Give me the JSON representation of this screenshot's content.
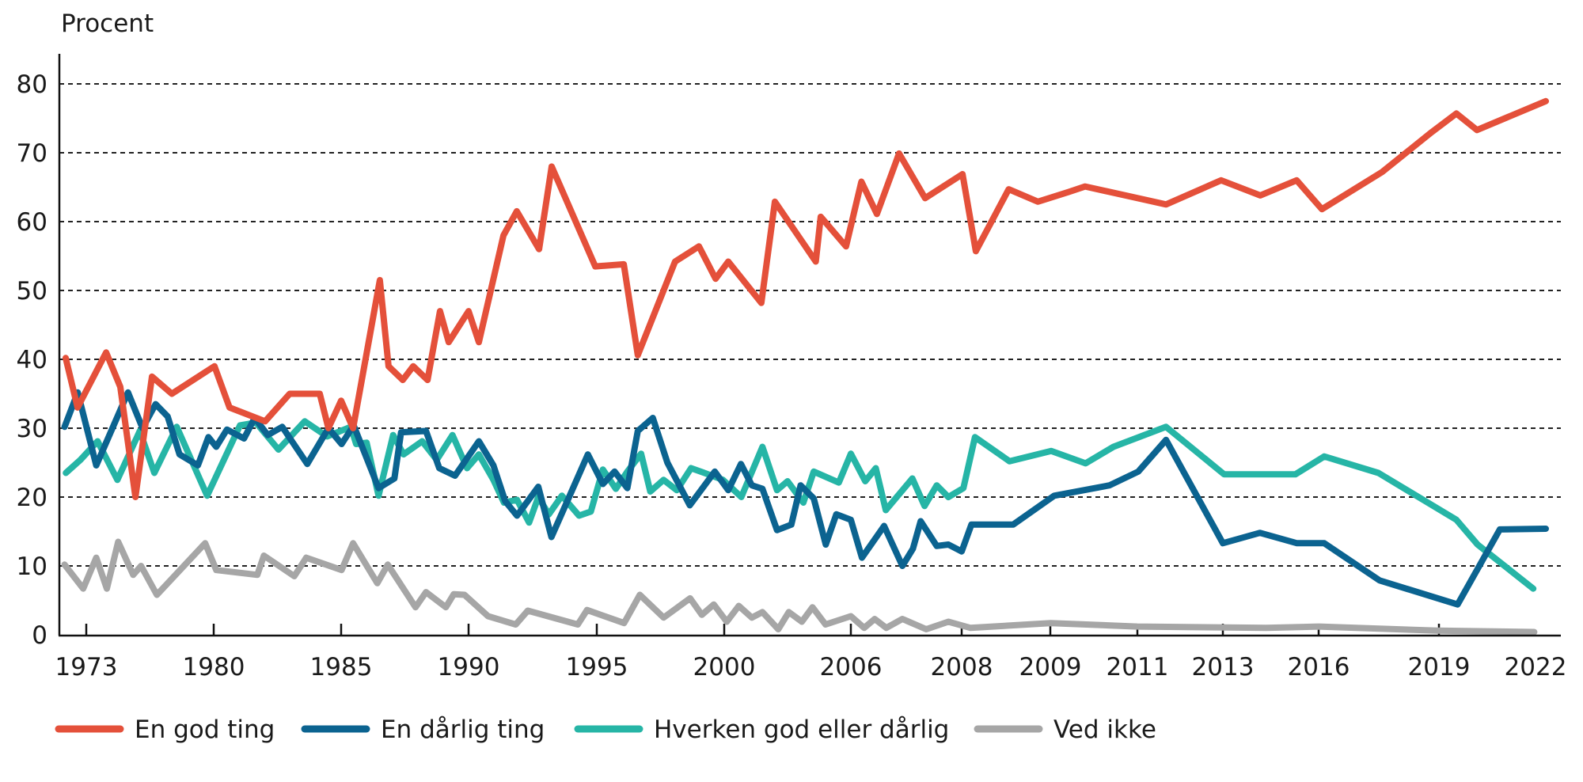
{
  "chart_data": {
    "type": "line",
    "title": "",
    "ylabel": "Procent",
    "xlabel": "",
    "ylim": [
      0,
      80
    ],
    "yticks": [
      "0",
      "10",
      "20",
      "30",
      "40",
      "50",
      "60",
      "70",
      "80"
    ],
    "xticks": [
      "1973",
      "1980",
      "1985",
      "1990",
      "1995",
      "2000",
      "2006",
      "2008",
      "2009",
      "2011",
      "2013",
      "2016",
      "2019",
      "2022"
    ],
    "x_axis_note_scale": "non-linear (survey rounds)",
    "grid": "horizontal dashed",
    "legend_position": "bottom",
    "series": [
      {
        "name": "En god ting",
        "color": "#e4503a",
        "points": [
          [
            1971.87,
            40.2
          ],
          [
            1972.52,
            33
          ],
          [
            1974.09,
            41
          ],
          [
            1974.87,
            36
          ],
          [
            1975.7,
            20
          ],
          [
            1976.61,
            37.5
          ],
          [
            1977.7,
            35
          ],
          [
            1980.03,
            39
          ],
          [
            1980.62,
            33
          ],
          [
            1982.02,
            31
          ],
          [
            1982.98,
            35
          ],
          [
            1984.16,
            35
          ],
          [
            1984.5,
            30
          ],
          [
            1985.0,
            34
          ],
          [
            1985.47,
            30
          ],
          [
            1986.52,
            51.5
          ],
          [
            1986.86,
            39
          ],
          [
            1987.42,
            37
          ],
          [
            1987.83,
            39
          ],
          [
            1988.39,
            37
          ],
          [
            1988.88,
            47
          ],
          [
            1989.22,
            42.5
          ],
          [
            1990.0,
            47
          ],
          [
            1990.4,
            42.5
          ],
          [
            1991.36,
            58
          ],
          [
            1991.88,
            61.5
          ],
          [
            1992.75,
            56
          ],
          [
            1993.24,
            68
          ],
          [
            1994.94,
            53.5
          ],
          [
            1996.06,
            53.8
          ],
          [
            1996.61,
            40.6
          ],
          [
            1998.07,
            54.2
          ],
          [
            1999.01,
            56.4
          ],
          [
            1999.66,
            51.7
          ],
          [
            2000.19,
            54.2
          ],
          [
            2001.76,
            48.2
          ],
          [
            2002.4,
            62.9
          ],
          [
            2004.34,
            54.2
          ],
          [
            2004.57,
            60.7
          ],
          [
            2005.77,
            56.4
          ],
          [
            2006.19,
            65.8
          ],
          [
            2006.47,
            61.1
          ],
          [
            2006.87,
            69.9
          ],
          [
            2007.34,
            63.4
          ],
          [
            2008.01,
            66.9
          ],
          [
            2008.16,
            55.7
          ],
          [
            2008.53,
            64.7
          ],
          [
            2008.86,
            62.9
          ],
          [
            2009.42,
            64.3
          ],
          [
            2009.8,
            65.1
          ],
          [
            2011.67,
            62.5
          ],
          [
            2012.96,
            66
          ],
          [
            2014.17,
            63.8
          ],
          [
            2015.31,
            66
          ],
          [
            2016.08,
            61.8
          ],
          [
            2017.58,
            67.2
          ],
          [
            2018.82,
            73
          ],
          [
            2019.54,
            75.7
          ],
          [
            2020.18,
            73.3
          ],
          [
            2022.32,
            77.5
          ]
        ]
      },
      {
        "name": "En dårlig ting",
        "color": "#0b6390",
        "points": [
          [
            1971.81,
            30.2
          ],
          [
            1972.53,
            35.2
          ],
          [
            1973.55,
            24.6
          ],
          [
            1975.29,
            35.2
          ],
          [
            1976.09,
            30
          ],
          [
            1976.81,
            33.5
          ],
          [
            1977.47,
            31.7
          ],
          [
            1978.12,
            26.2
          ],
          [
            1979.13,
            24.6
          ],
          [
            1979.71,
            28.7
          ],
          [
            1980.1,
            27.3
          ],
          [
            1980.52,
            29.8
          ],
          [
            1981.19,
            28.5
          ],
          [
            1981.61,
            31.5
          ],
          [
            1982.12,
            29
          ],
          [
            1982.69,
            30.2
          ],
          [
            1983.67,
            24.8
          ],
          [
            1984.5,
            30
          ],
          [
            1985.02,
            27.7
          ],
          [
            1985.49,
            30.4
          ],
          [
            1986.47,
            21.3
          ],
          [
            1987.09,
            22.7
          ],
          [
            1987.35,
            29.4
          ],
          [
            1988.33,
            29.6
          ],
          [
            1988.85,
            24.2
          ],
          [
            1989.47,
            23.1
          ],
          [
            1990.4,
            28.1
          ],
          [
            1990.97,
            24.6
          ],
          [
            1991.43,
            19.4
          ],
          [
            1991.89,
            17.3
          ],
          [
            1992.72,
            21.5
          ],
          [
            1993.23,
            14.2
          ],
          [
            1993.85,
            19.4
          ],
          [
            1994.65,
            26.2
          ],
          [
            1995.24,
            21.9
          ],
          [
            1995.7,
            23.7
          ],
          [
            1996.2,
            21.3
          ],
          [
            1996.61,
            29.6
          ],
          [
            1997.2,
            31.5
          ],
          [
            1997.77,
            25
          ],
          [
            1998.65,
            18.8
          ],
          [
            1999.63,
            23.7
          ],
          [
            2000.19,
            21
          ],
          [
            2000.79,
            24.8
          ],
          [
            2001.31,
            21.7
          ],
          [
            2001.81,
            21.2
          ],
          [
            2002.5,
            15.2
          ],
          [
            2003.18,
            16
          ],
          [
            2003.62,
            21.7
          ],
          [
            2004.24,
            19.8
          ],
          [
            2004.81,
            13.1
          ],
          [
            2005.31,
            17.5
          ],
          [
            2006.0,
            16.7
          ],
          [
            2006.2,
            11.2
          ],
          [
            2006.6,
            15.8
          ],
          [
            2006.93,
            10
          ],
          [
            2007.12,
            12.5
          ],
          [
            2007.26,
            16.5
          ],
          [
            2007.55,
            12.9
          ],
          [
            2007.76,
            13.1
          ],
          [
            2008.0,
            12.1
          ],
          [
            2008.11,
            16
          ],
          [
            2008.58,
            16
          ],
          [
            2009.09,
            20.2
          ],
          [
            2010.36,
            21.7
          ],
          [
            2011.02,
            23.7
          ],
          [
            2011.67,
            28.3
          ],
          [
            2013.0,
            13.3
          ],
          [
            2014.16,
            14.8
          ],
          [
            2015.32,
            13.3
          ],
          [
            2016.14,
            13.3
          ],
          [
            2017.52,
            7.9
          ],
          [
            2019.58,
            4.4
          ],
          [
            2020.89,
            15.3
          ],
          [
            2022.32,
            15.4
          ]
        ]
      },
      {
        "name": "Hverken god eller dårlig",
        "color": "#26b5a6",
        "points": [
          [
            1971.88,
            23.5
          ],
          [
            1972.68,
            25.4
          ],
          [
            1973.62,
            28.1
          ],
          [
            1974.71,
            22.5
          ],
          [
            1975.94,
            29.6
          ],
          [
            1976.74,
            23.5
          ],
          [
            1977.97,
            30.2
          ],
          [
            1979.64,
            20.2
          ],
          [
            1981.03,
            30.4
          ],
          [
            1981.66,
            30.8
          ],
          [
            1982.54,
            26.9
          ],
          [
            1983.57,
            31
          ],
          [
            1984.45,
            28.8
          ],
          [
            1985.38,
            30.2
          ],
          [
            1985.59,
            27.7
          ],
          [
            1986.0,
            27.9
          ],
          [
            1986.47,
            20.2
          ],
          [
            1987.04,
            29
          ],
          [
            1987.45,
            26.2
          ],
          [
            1988.18,
            28.1
          ],
          [
            1988.75,
            25.4
          ],
          [
            1989.37,
            29
          ],
          [
            1989.94,
            24.2
          ],
          [
            1990.4,
            26.2
          ],
          [
            1990.97,
            22.5
          ],
          [
            1991.38,
            19.2
          ],
          [
            1991.89,
            19.6
          ],
          [
            1992.36,
            16.3
          ],
          [
            1992.72,
            20
          ],
          [
            1993.13,
            17.5
          ],
          [
            1993.64,
            20.2
          ],
          [
            1994.31,
            17.3
          ],
          [
            1994.77,
            17.9
          ],
          [
            1995.24,
            24
          ],
          [
            1995.75,
            21.2
          ],
          [
            1996.22,
            23.8
          ],
          [
            1996.74,
            26.3
          ],
          [
            1997.1,
            20.8
          ],
          [
            1997.62,
            22.5
          ],
          [
            1998.14,
            21
          ],
          [
            1998.7,
            24.2
          ],
          [
            1999.22,
            23.5
          ],
          [
            1999.95,
            22.5
          ],
          [
            2000.81,
            20
          ],
          [
            2001.81,
            27.3
          ],
          [
            2002.5,
            21
          ],
          [
            2003.0,
            22.3
          ],
          [
            2003.75,
            19.2
          ],
          [
            2004.24,
            23.7
          ],
          [
            2005.43,
            22.1
          ],
          [
            2006.0,
            26.3
          ],
          [
            2006.26,
            22.3
          ],
          [
            2006.45,
            24.2
          ],
          [
            2006.63,
            18.1
          ],
          [
            2007.11,
            22.7
          ],
          [
            2007.33,
            18.7
          ],
          [
            2007.55,
            21.7
          ],
          [
            2007.76,
            20
          ],
          [
            2008.02,
            21.3
          ],
          [
            2008.15,
            28.7
          ],
          [
            2008.54,
            25.2
          ],
          [
            2009.02,
            26.7
          ],
          [
            2009.81,
            24.9
          ],
          [
            2010.45,
            27.3
          ],
          [
            2011.67,
            30.2
          ],
          [
            2013.04,
            23.3
          ],
          [
            2015.27,
            23.3
          ],
          [
            2016.14,
            25.9
          ],
          [
            2017.49,
            23.5
          ],
          [
            2019.54,
            16.7
          ],
          [
            2020.2,
            13.1
          ],
          [
            2021.93,
            6.7
          ]
        ]
      },
      {
        "name": "Ved ikke",
        "color": "#a6a6a6",
        "points": [
          [
            1971.81,
            10.2
          ],
          [
            1972.83,
            6.7
          ],
          [
            1973.55,
            11.2
          ],
          [
            1974.13,
            6.7
          ],
          [
            1974.75,
            13.5
          ],
          [
            1975.58,
            8.7
          ],
          [
            1976.01,
            10
          ],
          [
            1976.88,
            5.8
          ],
          [
            1979.53,
            13.3
          ],
          [
            1980.1,
            9.4
          ],
          [
            1981.71,
            8.7
          ],
          [
            1981.97,
            11.5
          ],
          [
            1983.16,
            8.5
          ],
          [
            1983.63,
            11.2
          ],
          [
            1985.02,
            9.4
          ],
          [
            1985.47,
            13.3
          ],
          [
            1986.42,
            7.5
          ],
          [
            1986.83,
            10.2
          ],
          [
            1987.92,
            4
          ],
          [
            1988.33,
            6.2
          ],
          [
            1989.11,
            4
          ],
          [
            1989.42,
            5.9
          ],
          [
            1989.84,
            5.8
          ],
          [
            1990.76,
            2.7
          ],
          [
            1991.84,
            1.5
          ],
          [
            1992.31,
            3.5
          ],
          [
            1994.26,
            1.5
          ],
          [
            1994.62,
            3.6
          ],
          [
            1996.07,
            1.7
          ],
          [
            1996.69,
            5.8
          ],
          [
            1997.62,
            2.5
          ],
          [
            1998.66,
            5.3
          ],
          [
            1999.12,
            2.9
          ],
          [
            1999.59,
            4.4
          ],
          [
            2000.12,
            1.9
          ],
          [
            2000.69,
            4.2
          ],
          [
            2001.31,
            2.5
          ],
          [
            2001.81,
            3.3
          ],
          [
            2002.56,
            0.8
          ],
          [
            2003.06,
            3.3
          ],
          [
            2003.68,
            1.9
          ],
          [
            2004.18,
            4
          ],
          [
            2004.8,
            1.5
          ],
          [
            2006.0,
            2.7
          ],
          [
            2006.24,
            1
          ],
          [
            2006.43,
            2.3
          ],
          [
            2006.64,
            1
          ],
          [
            2006.93,
            2.3
          ],
          [
            2007.36,
            0.8
          ],
          [
            2007.76,
            1.9
          ],
          [
            2008.1,
            1
          ],
          [
            2009.01,
            1.7
          ],
          [
            2011.0,
            1.2
          ],
          [
            2014.36,
            1
          ],
          [
            2016.01,
            1.2
          ],
          [
            2018.97,
            0.6
          ],
          [
            2021.96,
            0.4
          ]
        ]
      }
    ]
  }
}
